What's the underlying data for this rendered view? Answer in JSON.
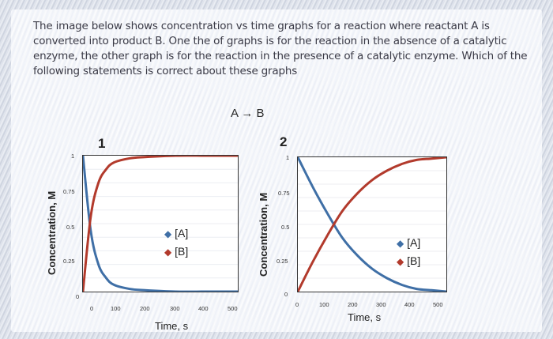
{
  "question": "The image below shows concentration vs time graphs for a reaction where reactant A is converted into product B. One the of graphs is for the reaction in the absence of a catalytic enzyme, the other graph is for the reaction in the presence of a catalytic enzyme. Which of the following statements is correct about these graphs",
  "reaction": "A → B",
  "graph1": {
    "number": "1",
    "ylabel": "Concentration, M",
    "xlabel": "Time, s",
    "yticks": [
      "1",
      "0.75",
      "0.5",
      "0.25",
      "0"
    ],
    "xticks": [
      "0",
      "100",
      "200",
      "300",
      "400",
      "500"
    ],
    "legend_a": "[A]",
    "legend_b": "[B]"
  },
  "graph2": {
    "number": "2",
    "ylabel": "Concentration, M",
    "xlabel": "Time, s",
    "yticks": [
      "1",
      "0.75",
      "0.5",
      "0.25",
      "0"
    ],
    "xticks": [
      "0",
      "100",
      "200",
      "300",
      "400",
      "500"
    ],
    "legend_a": "[A]",
    "legend_b": "[B]"
  },
  "colors": {
    "A": "#3f6fa6",
    "B": "#b23a2c"
  },
  "chart_data": [
    {
      "type": "line",
      "xlabel": "Time, s",
      "ylabel": "Concentration, M",
      "xlim": [
        0,
        500
      ],
      "ylim": [
        0,
        1
      ],
      "x": [
        0,
        25,
        50,
        75,
        100,
        150,
        200,
        300,
        400,
        500
      ],
      "series": [
        {
          "name": "[A]",
          "values": [
            1.0,
            0.45,
            0.2,
            0.1,
            0.05,
            0.02,
            0.01,
            0.0,
            0.0,
            0.0
          ]
        },
        {
          "name": "[B]",
          "values": [
            0.0,
            0.55,
            0.8,
            0.9,
            0.95,
            0.98,
            0.99,
            1.0,
            1.0,
            1.0
          ]
        }
      ]
    },
    {
      "type": "line",
      "xlabel": "Time, s",
      "ylabel": "Concentration, M",
      "xlim": [
        0,
        500
      ],
      "ylim": [
        0,
        1
      ],
      "x": [
        0,
        50,
        100,
        150,
        200,
        250,
        300,
        350,
        400,
        450,
        500
      ],
      "series": [
        {
          "name": "[A]",
          "values": [
            1.0,
            0.78,
            0.58,
            0.4,
            0.27,
            0.17,
            0.1,
            0.05,
            0.02,
            0.01,
            0.0
          ]
        },
        {
          "name": "[B]",
          "values": [
            0.0,
            0.22,
            0.42,
            0.6,
            0.73,
            0.83,
            0.9,
            0.95,
            0.98,
            0.99,
            1.0
          ]
        }
      ]
    }
  ]
}
